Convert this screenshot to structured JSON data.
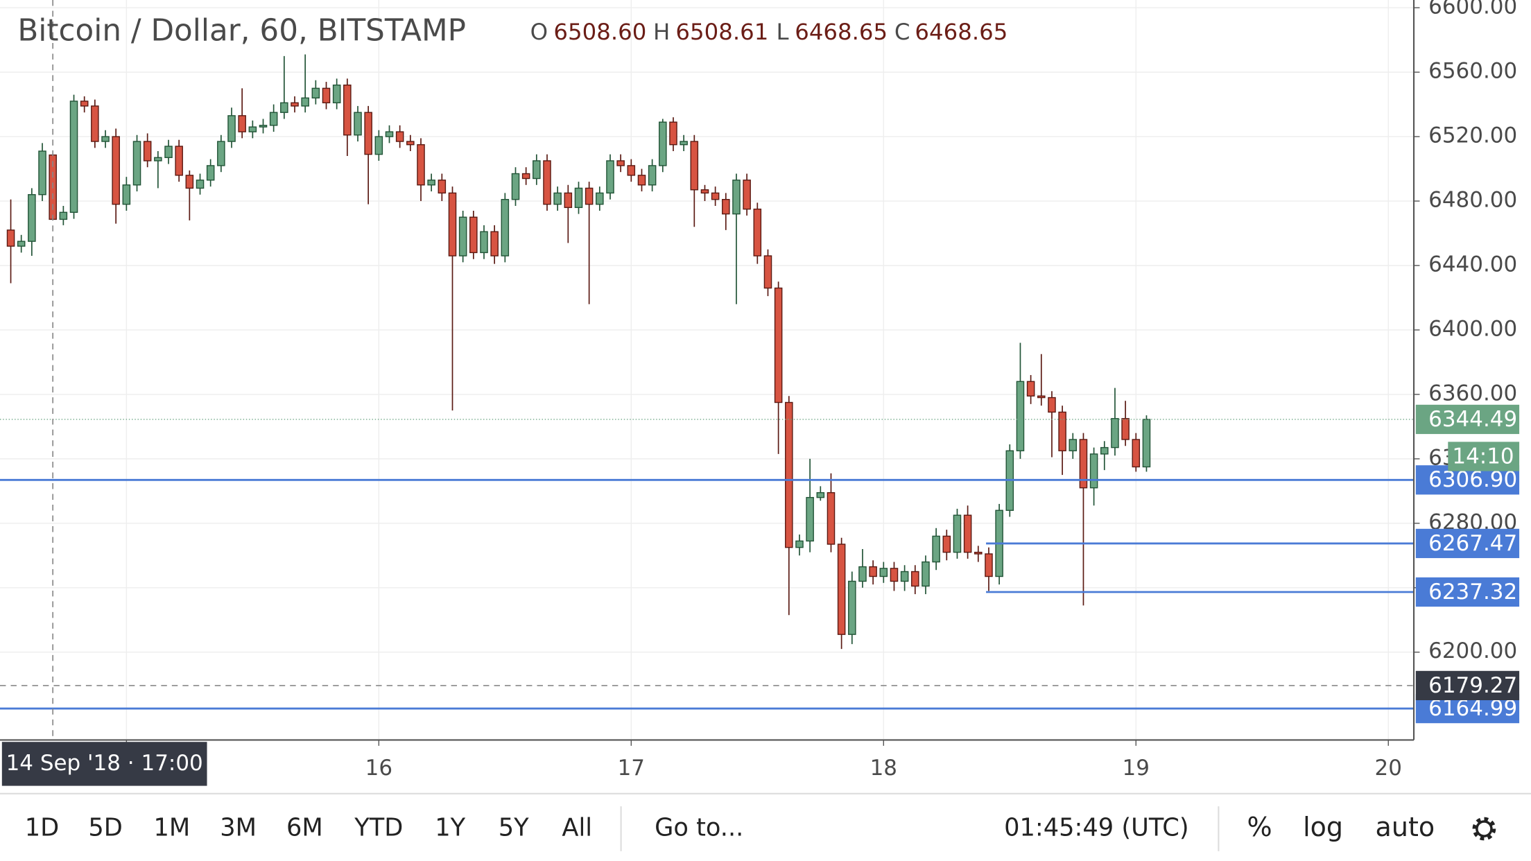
{
  "chart_data": {
    "type": "candlestick",
    "title": "Bitcoin / Dollar, 60, BITSTAMP",
    "ohlc_legend": [
      {
        "label": "O",
        "value": "6508.60"
      },
      {
        "label": "H",
        "value": "6508.61"
      },
      {
        "label": "L",
        "value": "6468.65"
      },
      {
        "label": "C",
        "value": "6468.65"
      }
    ],
    "x": [
      14.5417,
      14.5833,
      14.625,
      14.6667,
      14.7083,
      14.75,
      14.7917,
      14.8333,
      14.875,
      14.9167,
      14.9583,
      15,
      15.0417,
      15.0833,
      15.125,
      15.1667,
      15.2083,
      15.25,
      15.2917,
      15.3333,
      15.375,
      15.4167,
      15.4583,
      15.5,
      15.5417,
      15.5833,
      15.625,
      15.6667,
      15.7083,
      15.75,
      15.7917,
      15.8333,
      15.875,
      15.9167,
      15.9583,
      16,
      16.0417,
      16.0833,
      16.125,
      16.1667,
      16.2083,
      16.25,
      16.2917,
      16.3333,
      16.375,
      16.4167,
      16.4583,
      16.5,
      16.5417,
      16.5833,
      16.625,
      16.6667,
      16.7083,
      16.75,
      16.7917,
      16.8333,
      16.875,
      16.9167,
      16.9583,
      17,
      17.0417,
      17.0833,
      17.125,
      17.1667,
      17.2083,
      17.25,
      17.2917,
      17.3333,
      17.375,
      17.4167,
      17.4583,
      17.5,
      17.5417,
      17.5833,
      17.625,
      17.6667,
      17.7083,
      17.75,
      17.7917,
      17.8333,
      17.875,
      17.9167,
      17.9583,
      18,
      18.0417,
      18.0833,
      18.125,
      18.1667,
      18.2083,
      18.25,
      18.2917,
      18.3333,
      18.375,
      18.4167,
      18.4583,
      18.5,
      18.5417,
      18.5833,
      18.625,
      18.6667,
      18.7083,
      18.75,
      18.7917,
      18.8333,
      18.875,
      18.9167,
      18.9583,
      19,
      19.0417
    ],
    "open": [
      6462,
      6452,
      6455,
      6484,
      6508.6,
      6468.65,
      6473,
      6542,
      6539,
      6517,
      6520,
      6478,
      6490,
      6517,
      6505,
      6507,
      6514,
      6496,
      6488,
      6493,
      6502,
      6517,
      6533,
      6523,
      6526,
      6527,
      6535,
      6541,
      6539,
      6544,
      6550,
      6541,
      6552,
      6521,
      6535,
      6509,
      6520,
      6523,
      6517,
      6515,
      6490,
      6493,
      6485,
      6446,
      6470,
      6448,
      6461,
      6446,
      6481,
      6497,
      6494,
      6505,
      6478,
      6485,
      6476,
      6488,
      6478,
      6485,
      6505,
      6502,
      6496,
      6490,
      6502,
      6529,
      6515,
      6517,
      6487,
      6485,
      6481,
      6472,
      6493,
      6475,
      6446,
      6426,
      6355,
      6265,
      6269,
      6296,
      6299,
      6267,
      6211,
      6244,
      6253,
      6247,
      6252,
      6244,
      6250,
      6241,
      6256,
      6272,
      6262,
      6285,
      6262,
      6261,
      6247,
      6288,
      6325,
      6368,
      6359,
      6358,
      6349,
      6325,
      6332,
      6302,
      6323,
      6327,
      6345,
      6332,
      6315
    ],
    "high": [
      6481,
      6459,
      6488,
      6516,
      6508.61,
      6477,
      6546,
      6545,
      6543,
      6524,
      6525,
      6495,
      6521,
      6522,
      6511,
      6518,
      6518,
      6499,
      6497,
      6506,
      6521,
      6538,
      6550,
      6530,
      6531,
      6540,
      6570,
      6545,
      6571,
      6555,
      6554,
      6556,
      6556,
      6539,
      6539,
      6524,
      6527,
      6527,
      6521,
      6519,
      6497,
      6497,
      6489,
      6474,
      6474,
      6465,
      6465,
      6485,
      6501,
      6501,
      6509,
      6509,
      6489,
      6490,
      6492,
      6492,
      6489,
      6509,
      6509,
      6506,
      6500,
      6506,
      6531,
      6532,
      6521,
      6521,
      6490,
      6489,
      6485,
      6497,
      6497,
      6479,
      6450,
      6430,
      6359,
      6273,
      6320,
      6303,
      6311,
      6271,
      6250,
      6264,
      6257,
      6256,
      6256,
      6254,
      6254,
      6260,
      6277,
      6276,
      6289,
      6291,
      6266,
      6265,
      6292,
      6329,
      6392,
      6372,
      6385,
      6362,
      6353,
      6336,
      6336,
      6327,
      6331,
      6364,
      6356,
      6336,
      6347
    ],
    "low": [
      6429,
      6448,
      6446,
      6480,
      6468.65,
      6465,
      6469,
      6535,
      6513,
      6513,
      6466,
      6474,
      6486,
      6501,
      6488,
      6503,
      6492,
      6468,
      6484,
      6489,
      6498,
      6513,
      6519,
      6519,
      6522,
      6523,
      6531,
      6535,
      6535,
      6540,
      6537,
      6537,
      6508,
      6517,
      6478,
      6505,
      6516,
      6513,
      6511,
      6480,
      6486,
      6480,
      6350,
      6442,
      6444,
      6444,
      6441,
      6442,
      6477,
      6490,
      6490,
      6474,
      6474,
      6454,
      6472,
      6416,
      6474,
      6481,
      6498,
      6492,
      6486,
      6486,
      6498,
      6511,
      6511,
      6464,
      6480,
      6477,
      6462,
      6416,
      6471,
      6441,
      6421,
      6323,
      6223,
      6260,
      6262,
      6294,
      6262,
      6202,
      6205,
      6240,
      6242,
      6243,
      6238,
      6238,
      6236,
      6236,
      6251,
      6257,
      6258,
      6258,
      6256,
      6238,
      6242,
      6284,
      6320,
      6354,
      6353,
      6321,
      6310,
      6320,
      6229,
      6291,
      6313,
      6322,
      6328,
      6312,
      6312
    ],
    "close": [
      6452,
      6455,
      6484,
      6511,
      6468.65,
      6473,
      6542,
      6539,
      6517,
      6520,
      6478,
      6490,
      6517,
      6505,
      6507,
      6514,
      6496,
      6488,
      6493,
      6502,
      6517,
      6533,
      6523,
      6526,
      6527,
      6535,
      6541,
      6539,
      6544,
      6550,
      6541,
      6552,
      6521,
      6535,
      6509,
      6520,
      6523,
      6517,
      6515,
      6490,
      6493,
      6485,
      6446,
      6470,
      6448,
      6461,
      6446,
      6481,
      6497,
      6494,
      6505,
      6478,
      6485,
      6476,
      6488,
      6478,
      6485,
      6505,
      6502,
      6496,
      6490,
      6502,
      6529,
      6515,
      6517,
      6487,
      6485,
      6481,
      6472,
      6493,
      6475,
      6446,
      6426,
      6355,
      6265,
      6269,
      6296,
      6299,
      6267,
      6211,
      6244,
      6253,
      6247,
      6252,
      6244,
      6250,
      6241,
      6256,
      6272,
      6262,
      6285,
      6262,
      6261,
      6247,
      6288,
      6325,
      6368,
      6359,
      6358,
      6349,
      6325,
      6332,
      6302,
      6323,
      6327,
      6345,
      6332,
      6315,
      6344.49
    ],
    "up_color": "#6ba583",
    "down_color": "#d75442",
    "up_border": "#225437",
    "down_border": "#5b1a13",
    "xlim": [
      14.499,
      20.101
    ],
    "ylim": [
      6145.5,
      6604.8
    ],
    "xticks": [
      15,
      16,
      17,
      18,
      19,
      20
    ],
    "yticks": [
      {
        "value": 6200,
        "label": "6200.00"
      },
      {
        "value": 6240,
        "label": "6240.00"
      },
      {
        "value": 6280,
        "label": "6280.00"
      },
      {
        "value": 6320,
        "label": "6320.00"
      },
      {
        "value": 6360,
        "label": "6360.00"
      },
      {
        "value": 6400,
        "label": "6400.00"
      },
      {
        "value": 6440,
        "label": "6440.00"
      },
      {
        "value": 6480,
        "label": "6480.00"
      },
      {
        "value": 6520,
        "label": "6520.00"
      },
      {
        "value": 6560,
        "label": "6560.00"
      },
      {
        "value": 6600,
        "label": "6600.00"
      }
    ],
    "grid": true,
    "price_line_color": "#4a7bd6",
    "price_lines": [
      {
        "value": 6306.9,
        "label": "6306.90"
      },
      {
        "value": 6267.47,
        "label": "6267.47",
        "x_start": 18.406
      },
      {
        "value": 6237.32,
        "label": "6237.32",
        "x_start": 18.406
      },
      {
        "value": 6164.99,
        "label": "6164.99"
      }
    ],
    "last_price": {
      "value": 6344.49,
      "label": "6344.49",
      "countdown": "14:10"
    },
    "crosshair": {
      "x": 14.7083,
      "x_label": "14 Sep '18 · 17:00",
      "y": 6179.27,
      "y_label": "6179.27"
    }
  },
  "toolbar": {
    "ranges": [
      "1D",
      "5D",
      "1M",
      "3M",
      "6M",
      "YTD",
      "1Y",
      "5Y",
      "All"
    ],
    "goto": "Go to...",
    "clock": "01:45:49 (UTC)",
    "options": [
      "%",
      "log",
      "auto"
    ]
  }
}
